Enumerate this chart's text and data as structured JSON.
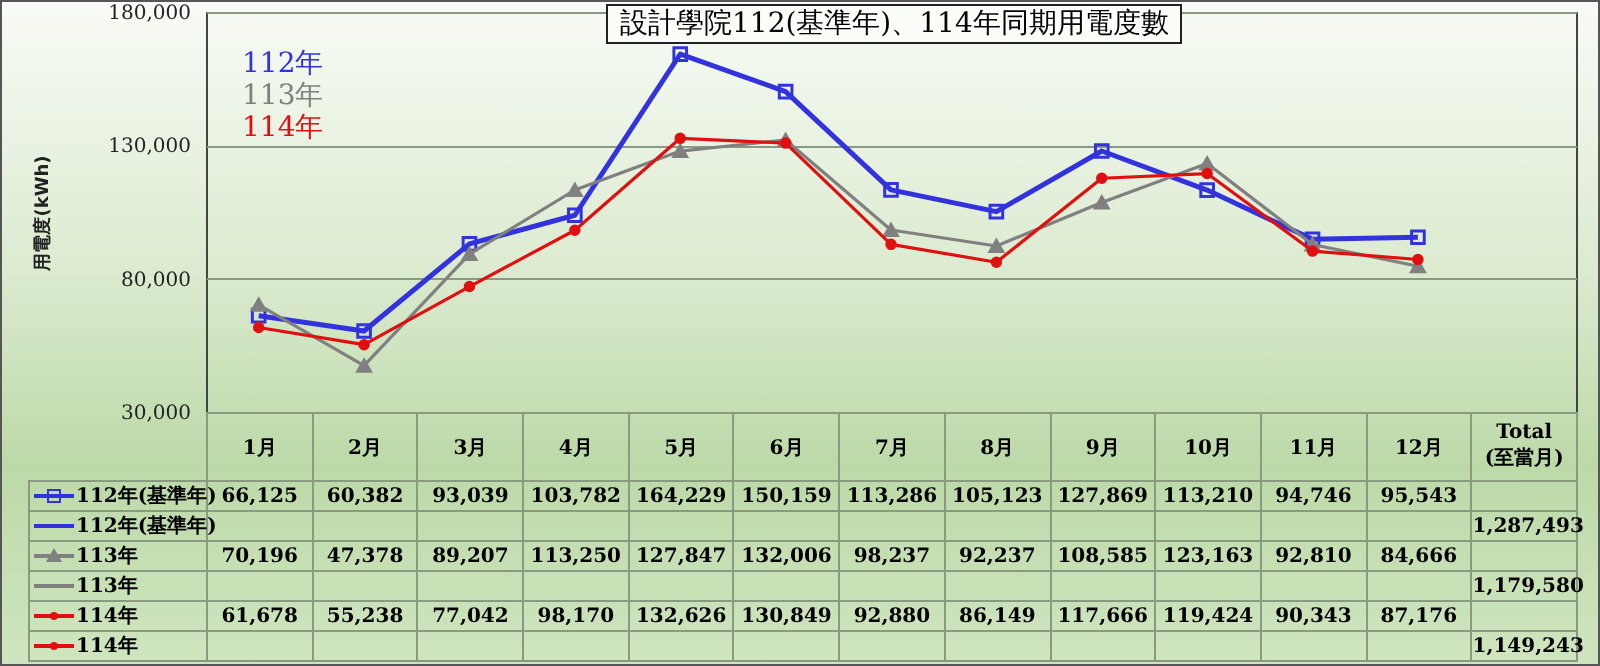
{
  "chart_data": {
    "type": "line",
    "title": "設計學院112(基準年)、114年同期用電度數",
    "ylabel": "用電度(kWh)",
    "categories": [
      "1月",
      "2月",
      "3月",
      "4月",
      "5月",
      "6月",
      "7月",
      "8月",
      "9月",
      "10月",
      "11月",
      "12月"
    ],
    "series": [
      {
        "name": "112年(基準年)",
        "color": "#3333dd",
        "marker": "square",
        "values": [
          66125,
          60382,
          93039,
          103782,
          164229,
          150159,
          113286,
          105123,
          127869,
          113210,
          94746,
          95543
        ],
        "value_labels": [
          "66,125",
          "60,382",
          "93,039",
          "103,782",
          "164,229",
          "150,159",
          "113,286",
          "105,123",
          "127,869",
          "113,210",
          "94,746",
          "95,543"
        ]
      },
      {
        "name": "113年",
        "color": "#808080",
        "marker": "triangle",
        "values": [
          70196,
          47378,
          89207,
          113250,
          127847,
          132006,
          98237,
          92237,
          108585,
          123163,
          92810,
          84666
        ],
        "value_labels": [
          "70,196",
          "47,378",
          "89,207",
          "113,250",
          "127,847",
          "132,006",
          "98,237",
          "92,237",
          "108,585",
          "123,163",
          "92,810",
          "84,666"
        ]
      },
      {
        "name": "114年",
        "color": "#e01010",
        "marker": "circle",
        "values": [
          61678,
          55238,
          77042,
          98170,
          132626,
          130849,
          92880,
          86149,
          117666,
          119424,
          90343,
          87176
        ],
        "value_labels": [
          "61,678",
          "55,238",
          "77,042",
          "98,170",
          "132,626",
          "130,849",
          "92,880",
          "86,149",
          "117,666",
          "119,424",
          "90,343",
          "87,176"
        ]
      }
    ],
    "ylim": [
      30000,
      180000
    ],
    "yticks": [
      {
        "value": 30000,
        "label": "30,000"
      },
      {
        "value": 80000,
        "label": "80,000"
      },
      {
        "value": 130000,
        "label": "130,000"
      },
      {
        "value": 180000,
        "label": "180,000"
      }
    ],
    "grid": "y",
    "legend": "bottom",
    "annotations": [
      "112年",
      "113年",
      "114年",
      "Total\n(至當月)",
      "1,287,493",
      "1,179,580",
      "1,149,243"
    ]
  }
}
